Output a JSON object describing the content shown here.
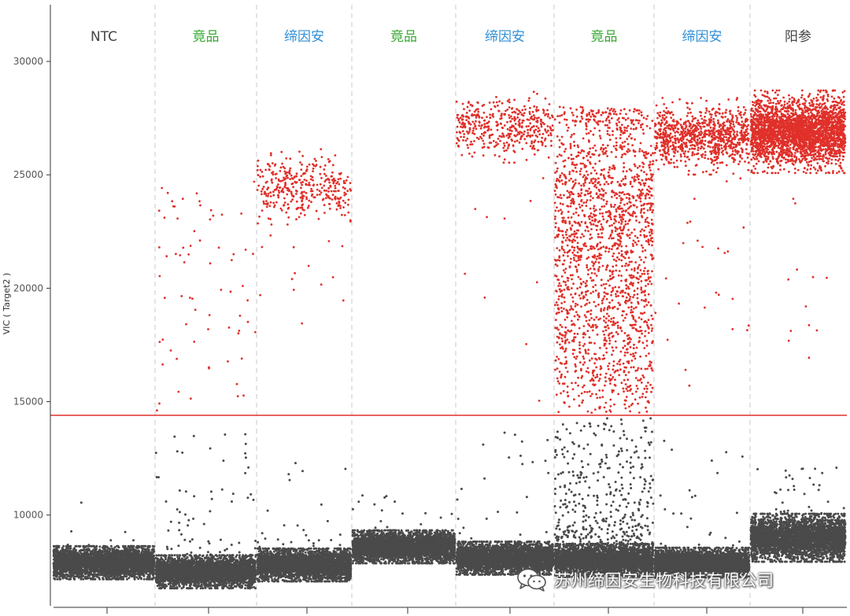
{
  "chart_data": {
    "type": "scatter",
    "title": "",
    "ylabel": "VIC ( Target2 )",
    "xlabel": "",
    "ylim": [
      6000,
      32500
    ],
    "yticks": [
      10000,
      15000,
      20000,
      25000,
      30000
    ],
    "threshold": 14400,
    "colors": {
      "positive": "#e0302a",
      "negative": "#4a4a4a",
      "threshold": "#e0302a",
      "label_ntc": "#444444",
      "label_competitor": "#3aaa35",
      "label_dian": "#2f8fd8",
      "label_positive": "#444444"
    },
    "wells": [
      {
        "label": "NTC",
        "label_color": "#444444",
        "neg_center": 7900,
        "neg_spread": 550,
        "neg_count": 3400,
        "neg_outlier_count": 8,
        "neg_outlier_max": 11200,
        "pos_count": 0,
        "pos_center": 0,
        "pos_spread": 0,
        "rain_count": 0
      },
      {
        "label": "竟品",
        "label_color": "#3aaa35",
        "neg_center": 7500,
        "neg_spread": 550,
        "neg_count": 3400,
        "neg_outlier_count": 70,
        "neg_outlier_max": 13600,
        "pos_count": 0,
        "pos_center": 0,
        "pos_spread": 0,
        "rain_count": 70,
        "rain_min": 14500,
        "rain_max": 24700
      },
      {
        "label": "缔因安",
        "label_color": "#2f8fd8",
        "neg_center": 7800,
        "neg_spread": 550,
        "neg_count": 3400,
        "neg_outlier_count": 30,
        "neg_outlier_max": 12300,
        "pos_count": 360,
        "pos_center": 24500,
        "pos_spread": 650,
        "rain_count": 18,
        "rain_min": 17500,
        "rain_max": 24000
      },
      {
        "label": "竟品",
        "label_color": "#3aaa35",
        "neg_center": 8600,
        "neg_spread": 550,
        "neg_count": 3600,
        "neg_outlier_count": 20,
        "neg_outlier_max": 11000,
        "pos_count": 0,
        "pos_center": 0,
        "pos_spread": 0,
        "rain_count": 0
      },
      {
        "label": "缔因安",
        "label_color": "#2f8fd8",
        "neg_center": 8100,
        "neg_spread": 550,
        "neg_count": 3400,
        "neg_outlier_count": 25,
        "neg_outlier_max": 13900,
        "pos_count": 430,
        "pos_center": 27100,
        "pos_spread": 600,
        "rain_count": 10,
        "rain_min": 15000,
        "rain_max": 25000
      },
      {
        "label": "竟品",
        "label_color": "#3aaa35",
        "neg_center": 8000,
        "neg_spread": 550,
        "neg_count": 3200,
        "neg_outlier_count": 420,
        "neg_outlier_max": 14300,
        "pos_count": 1100,
        "pos_center": 25500,
        "pos_spread": 1500,
        "rain_count": 800,
        "rain_min": 14500,
        "rain_max": 25000
      },
      {
        "label": "缔因安",
        "label_color": "#2f8fd8",
        "neg_center": 7900,
        "neg_spread": 500,
        "neg_count": 3200,
        "neg_outlier_count": 25,
        "neg_outlier_max": 13800,
        "pos_count": 900,
        "pos_center": 26700,
        "pos_spread": 650,
        "rain_count": 25,
        "rain_min": 15000,
        "rain_max": 25000
      },
      {
        "label": "阳参",
        "label_color": "#444444",
        "neg_center": 9000,
        "neg_spread": 800,
        "neg_count": 3400,
        "neg_outlier_count": 40,
        "neg_outlier_max": 12100,
        "pos_count": 2800,
        "pos_center": 26900,
        "pos_spread": 700,
        "rain_count": 12,
        "rain_min": 16700,
        "rain_max": 25000
      }
    ]
  },
  "watermark": {
    "text": "苏州缔因安生物科技有限公司",
    "icon": "wechat-icon"
  }
}
